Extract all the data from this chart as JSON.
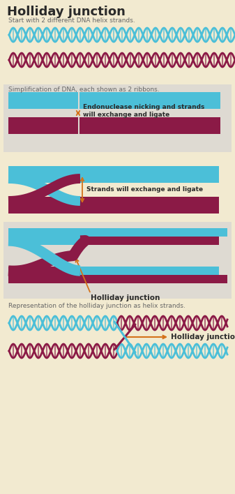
{
  "bg_cream": "#f2ead0",
  "bg_gray": "#dedad2",
  "blue": "#4bbfd8",
  "red": "#8b1a46",
  "orange": "#d4721a",
  "dark": "#3a3a3a",
  "mid": "#666666",
  "title": "Holliday junction",
  "sub1": "Start with 2 different DNA helix strands.",
  "sub2": "Simplification of DNA, each shown as 2 ribbons.",
  "sub3": "Representation of the holliday junction as helix strands.",
  "ann1": "Endonuclease nicking and strands\nwill exchange and ligate",
  "ann2": "Strands will exchange and ligate",
  "ann3": "Holliday junction",
  "ann4": "Holliday junction"
}
